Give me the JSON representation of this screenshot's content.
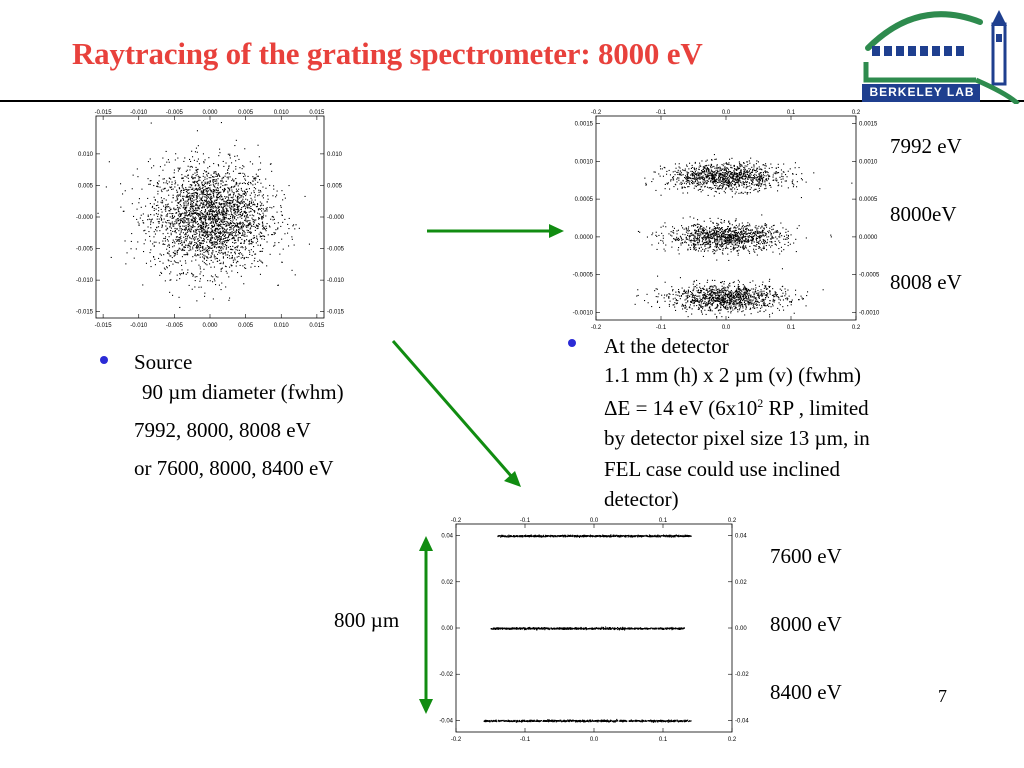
{
  "slide": {
    "title": "Raytracing of the grating spectrometer: 8000 eV",
    "title_color": "#e8413c",
    "page_number": "7"
  },
  "logo": {
    "text": "BERKELEY LAB",
    "green": "#2e8b4e",
    "blue": "#1f3f8f"
  },
  "colors": {
    "arrow_green": "#118c11",
    "bullet_blue": "#2b2bd6"
  },
  "source": {
    "label": "Source",
    "lines": [
      "90 µm diameter (fwhm)",
      "7992, 8000, 8008 eV",
      "or 7600, 8000, 8400 eV"
    ]
  },
  "detector": {
    "line1": "At the detector",
    "line2": "1.1 mm (h) x 2 µm (v) (fwhm)",
    "line3_a": "ΔE = 14 eV (6x10",
    "line3_sup": "2",
    "line3_b": " RP , limited",
    "line4": "by detector pixel size 13 µm, in",
    "line5": "FEL case could use inclined",
    "line6": "detector)"
  },
  "top_energies": [
    "7992  eV",
    "8000eV",
    "8008 eV"
  ],
  "bottom_energies": [
    "7600  eV",
    "8000 eV",
    "8400 eV"
  ],
  "scale_label": "800 µm",
  "chart_data": [
    {
      "type": "scatter",
      "panel": "source",
      "x_ticks": [
        "-0.015",
        "-0.010",
        "-0.005",
        "0.000",
        "0.005",
        "0.010",
        "0.015"
      ],
      "y_ticks": [
        "0.010",
        "0.005",
        "-0.000",
        "-0.005",
        "-0.010",
        "-0.015"
      ],
      "xlim": [
        -0.016,
        0.016
      ],
      "ylim": [
        -0.016,
        0.016
      ],
      "series": [
        {
          "center": [
            0,
            0
          ],
          "sigma": [
            0.0042,
            0.0042
          ],
          "points": 2800
        }
      ]
    },
    {
      "type": "scatter",
      "panel": "detector",
      "x_ticks": [
        "-0.2",
        "-0.1",
        "0.0",
        "0.1",
        "0.2"
      ],
      "y_ticks": [
        "0.0015",
        "0.0010",
        "0.0005",
        "0.0000",
        "-0.0005",
        "-0.0010"
      ],
      "xlim": [
        -0.2,
        0.2
      ],
      "ylim": [
        -0.0011,
        0.0016
      ],
      "series": [
        {
          "center": [
            0,
            0.0008
          ],
          "sigma": [
            0.045,
            9e-05
          ],
          "points": 1100
        },
        {
          "center": [
            0,
            0.0
          ],
          "sigma": [
            0.045,
            9e-05
          ],
          "points": 1100
        },
        {
          "center": [
            0,
            -0.0008
          ],
          "sigma": [
            0.045,
            9e-05
          ],
          "points": 1100
        }
      ]
    },
    {
      "type": "scatter",
      "panel": "detector-wide",
      "x_ticks": [
        "-0.2",
        "-0.1",
        "0.0",
        "0.1",
        "0.2"
      ],
      "y_ticks": [
        "0.04",
        "0.02",
        "0.00",
        "-0.02",
        "-0.04"
      ],
      "xlim": [
        -0.2,
        0.2
      ],
      "ylim": [
        -0.045,
        0.045
      ],
      "series": [
        {
          "center": [
            0,
            0.04
          ],
          "x_range": [
            -0.14,
            0.14
          ],
          "points": 900
        },
        {
          "center": [
            0,
            0.0
          ],
          "x_range": [
            -0.15,
            0.13
          ],
          "points": 900
        },
        {
          "center": [
            0,
            -0.04
          ],
          "x_range": [
            -0.16,
            0.14
          ],
          "points": 900
        }
      ]
    }
  ]
}
